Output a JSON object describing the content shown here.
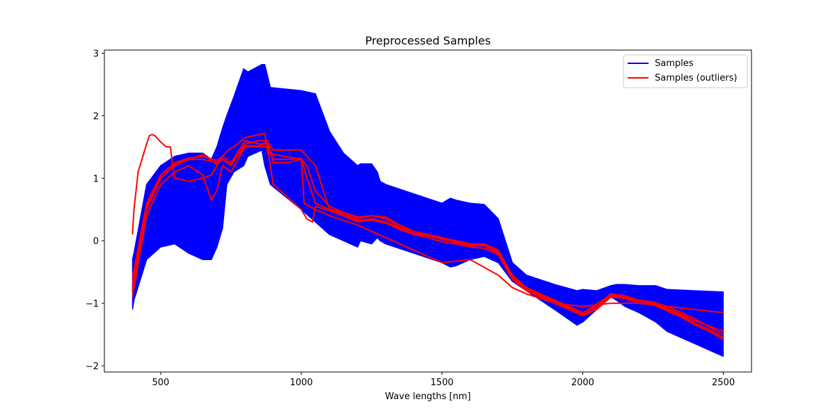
{
  "chart_data": {
    "type": "line",
    "title": "Preprocessed Samples",
    "xlabel": "Wave lengths [nm]",
    "ylabel": "",
    "xlim": [
      300,
      2600
    ],
    "ylim": [
      -2.1,
      3.05
    ],
    "xticks": [
      500,
      1000,
      1500,
      2000,
      2500
    ],
    "xtick_labels": [
      "500",
      "1000",
      "1500",
      "2000",
      "2500"
    ],
    "yticks": [
      -2,
      -1,
      0,
      1,
      2,
      3
    ],
    "ytick_labels": [
      "−2",
      "−1",
      "0",
      "1",
      "2",
      "3"
    ],
    "grid": false,
    "legend_position": "top-right",
    "series": [
      {
        "name": "Samples",
        "color": "#0000ff",
        "style": "band of many overlapping sample spectra",
        "x": [
          400,
          405,
          450,
          500,
          550,
          600,
          650,
          680,
          700,
          720,
          735,
          760,
          795,
          810,
          860,
          870,
          890,
          1000,
          1050,
          1100,
          1150,
          1200,
          1210,
          1250,
          1270,
          1280,
          1300,
          1500,
          1530,
          1550,
          1600,
          1650,
          1700,
          1750,
          1800,
          1900,
          1980,
          2000,
          2050,
          2100,
          2120,
          2150,
          2200,
          2260,
          2300,
          2400,
          2500
        ],
        "upper": [
          -0.3,
          -0.2,
          0.9,
          1.2,
          1.35,
          1.4,
          1.4,
          1.3,
          1.5,
          1.8,
          2.0,
          2.3,
          2.75,
          2.7,
          2.82,
          2.82,
          2.45,
          2.4,
          2.35,
          1.75,
          1.4,
          1.2,
          1.23,
          1.23,
          1.1,
          0.95,
          0.9,
          0.6,
          0.68,
          0.65,
          0.6,
          0.58,
          0.35,
          -0.35,
          -0.55,
          -0.7,
          -0.8,
          -0.78,
          -0.8,
          -0.72,
          -0.7,
          -0.7,
          -0.72,
          -0.72,
          -0.78,
          -0.8,
          -0.82
        ],
        "lower": [
          -1.1,
          -0.95,
          -0.3,
          -0.1,
          -0.05,
          -0.2,
          -0.3,
          -0.3,
          -0.1,
          0.2,
          0.9,
          1.1,
          1.2,
          1.35,
          1.45,
          1.2,
          0.9,
          0.5,
          0.3,
          0.1,
          0.0,
          -0.1,
          0.0,
          -0.05,
          0.05,
          0.0,
          -0.05,
          -0.35,
          -0.42,
          -0.4,
          -0.3,
          -0.25,
          -0.35,
          -0.65,
          -0.8,
          -1.1,
          -1.35,
          -1.3,
          -1.1,
          -0.9,
          -0.95,
          -1.05,
          -1.15,
          -1.3,
          -1.45,
          -1.65,
          -1.85
        ]
      },
      {
        "name": "Samples (outliers)",
        "color": "#ff0000",
        "style": "bundle of outlier spectra",
        "lines": [
          {
            "x": [
              400,
              405,
              420,
              450,
              460,
              470,
              480,
              500,
              520,
              535,
              540,
              550,
              600,
              650,
              680,
              700,
              720,
              740,
              760,
              800,
              850,
              870,
              880,
              1000,
              1010,
              1050,
              1100,
              1200,
              1300,
              1500,
              1600,
              1700,
              1750,
              1800,
              1900,
              2000,
              2100,
              2200,
              2300,
              2400,
              2500
            ],
            "y": [
              0.1,
              0.5,
              1.1,
              1.55,
              1.68,
              1.7,
              1.68,
              1.58,
              1.5,
              1.5,
              1.3,
              1.0,
              0.95,
              1.0,
              1.05,
              1.2,
              1.35,
              1.45,
              1.5,
              1.65,
              1.7,
              1.72,
              1.4,
              1.3,
              0.6,
              0.5,
              0.4,
              0.25,
              0.05,
              -0.35,
              -0.3,
              -0.55,
              -0.75,
              -0.85,
              -1.0,
              -1.05,
              -1.0,
              -1.0,
              -1.05,
              -1.1,
              -1.15
            ]
          },
          {
            "x": [
              400,
              450,
              500,
              550,
              600,
              650,
              700,
              720,
              750,
              800,
              850,
              880,
              900,
              950,
              1000,
              1020,
              1050,
              1100,
              1150,
              1200,
              1250,
              1300,
              1350,
              1400,
              1450,
              1500,
              1550,
              1600,
              1650,
              1700,
              1750,
              1800,
              1900,
              1950,
              2000,
              2050,
              2100,
              2150,
              2200,
              2250,
              2300,
              2350,
              2400,
              2450,
              2500
            ],
            "y": [
              -0.8,
              0.5,
              1.0,
              1.2,
              1.3,
              1.3,
              1.25,
              1.3,
              1.2,
              1.55,
              1.6,
              1.6,
              1.25,
              1.25,
              1.3,
              1.2,
              0.8,
              0.55,
              0.45,
              0.35,
              0.4,
              0.38,
              0.25,
              0.15,
              0.1,
              0.05,
              0.0,
              -0.05,
              -0.05,
              -0.15,
              -0.55,
              -0.75,
              -0.95,
              -1.05,
              -1.15,
              -1.05,
              -0.85,
              -0.88,
              -0.95,
              -0.98,
              -1.05,
              -1.15,
              -1.25,
              -1.38,
              -1.5
            ]
          },
          {
            "x": [
              400,
              450,
              500,
              550,
              600,
              650,
              700,
              720,
              750,
              800,
              850,
              880,
              900,
              950,
              1000,
              1020,
              1050,
              1100,
              1150,
              1200,
              1250,
              1300,
              1350,
              1400,
              1450,
              1500,
              1550,
              1600,
              1650,
              1700,
              1750,
              1800,
              1900,
              1950,
              2000,
              2050,
              2100,
              2150,
              2200,
              2250,
              2300,
              2350,
              2400,
              2450,
              2500
            ],
            "y": [
              -0.6,
              0.6,
              1.05,
              1.25,
              1.32,
              1.35,
              1.28,
              1.35,
              1.25,
              1.6,
              1.55,
              1.55,
              1.3,
              1.3,
              1.32,
              1.0,
              0.6,
              0.5,
              0.42,
              0.32,
              0.35,
              0.3,
              0.2,
              0.12,
              0.08,
              0.02,
              -0.02,
              -0.08,
              -0.08,
              -0.2,
              -0.6,
              -0.78,
              -0.98,
              -1.08,
              -1.18,
              -1.08,
              -0.88,
              -0.9,
              -0.97,
              -1.0,
              -1.1,
              -1.2,
              -1.32,
              -1.42,
              -1.55
            ]
          },
          {
            "x": [
              400,
              450,
              500,
              550,
              600,
              650,
              680,
              700,
              720,
              750,
              800,
              850,
              880,
              900,
              950,
              1000,
              1020,
              1040,
              1050,
              1100,
              1150,
              1200,
              1250,
              1300,
              1350,
              1400,
              1450,
              1500,
              1550,
              1600,
              1650,
              1700,
              1750,
              1800,
              1900,
              1950,
              2000,
              2050,
              2100,
              2150,
              2200,
              2250,
              2300,
              2350,
              2400,
              2450,
              2500
            ],
            "y": [
              -0.9,
              0.4,
              0.9,
              1.1,
              1.2,
              1.05,
              0.65,
              0.8,
              1.2,
              1.1,
              1.5,
              1.5,
              1.5,
              0.9,
              0.7,
              0.5,
              0.35,
              0.3,
              0.55,
              0.48,
              0.4,
              0.3,
              0.33,
              0.28,
              0.18,
              0.1,
              0.05,
              -0.02,
              -0.05,
              -0.1,
              -0.12,
              -0.22,
              -0.62,
              -0.8,
              -1.0,
              -1.1,
              -1.2,
              -1.1,
              -0.9,
              -0.92,
              -1.0,
              -1.02,
              -1.12,
              -1.22,
              -1.35,
              -1.45,
              -1.58
            ]
          },
          {
            "x": [
              400,
              450,
              500,
              550,
              600,
              650,
              700,
              720,
              750,
              800,
              850,
              880,
              900,
              950,
              1000,
              1050,
              1100,
              1150,
              1200,
              1250,
              1300,
              1350,
              1400,
              1450,
              1500,
              1550,
              1600,
              1650,
              1700,
              1750,
              1800,
              1900,
              2000,
              2100,
              2150,
              2200,
              2250,
              2300,
              2400,
              2500
            ],
            "y": [
              -0.7,
              0.55,
              1.0,
              1.22,
              1.3,
              1.38,
              1.22,
              1.3,
              1.22,
              1.52,
              1.52,
              1.58,
              1.45,
              1.45,
              1.45,
              1.2,
              0.5,
              0.45,
              0.38,
              0.4,
              0.35,
              0.22,
              0.15,
              0.1,
              0.03,
              -0.03,
              -0.06,
              -0.06,
              -0.18,
              -0.58,
              -0.76,
              -0.96,
              -1.16,
              -0.86,
              -0.9,
              -0.96,
              -0.99,
              -1.08,
              -1.28,
              -1.45
            ]
          }
        ]
      }
    ]
  }
}
